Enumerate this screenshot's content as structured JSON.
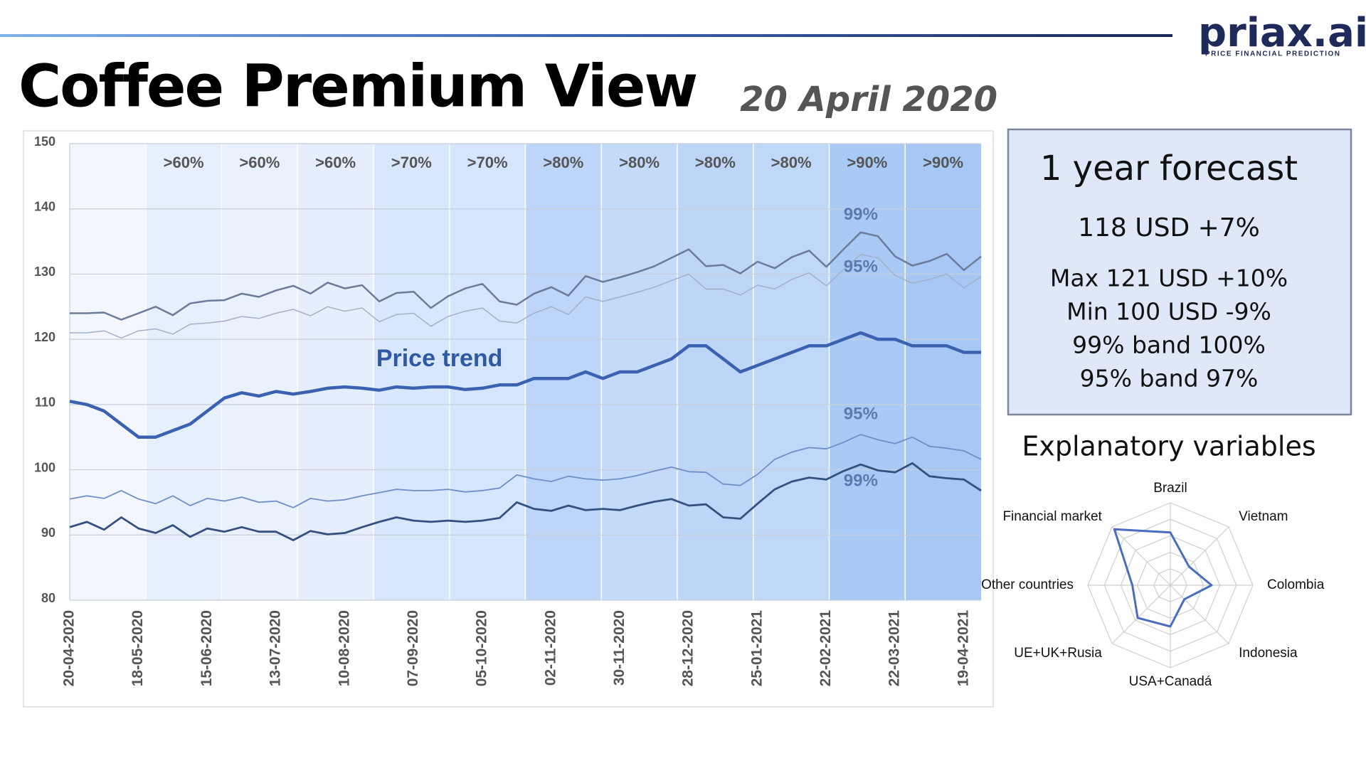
{
  "header": {
    "title": "Coffee Premium View",
    "date": "20 April 2020",
    "logo": "priax.ai",
    "logo_tagline": "PRICE FINANCIAL PREDICTION"
  },
  "forecast": {
    "title": "1 year forecast",
    "headline": "118 USD +7%",
    "lines": [
      "Max 121 USD +10%",
      "Min 100 USD -9%",
      "99% band 100%",
      "95% band 97%"
    ]
  },
  "chart_data": [
    {
      "type": "line",
      "categories": [
        "20-04-2020",
        null,
        null,
        null,
        "18-05-2020",
        null,
        null,
        null,
        "15-06-2020",
        null,
        null,
        null,
        "13-07-2020",
        null,
        null,
        null,
        "10-08-2020",
        null,
        null,
        null,
        "07-09-2020",
        null,
        null,
        null,
        "05-10-2020",
        null,
        null,
        null,
        "02-11-2020",
        null,
        null,
        null,
        "30-11-2020",
        null,
        null,
        null,
        "28-12-2020",
        null,
        null,
        null,
        "25-01-2021",
        null,
        null,
        null,
        "22-02-2021",
        null,
        null,
        null,
        "22-03-2021",
        null,
        null,
        null,
        "19-04-2021",
        null
      ],
      "ylim": [
        80,
        150
      ],
      "yticks": [
        80,
        90,
        100,
        110,
        120,
        130,
        140,
        150
      ],
      "grid": true,
      "bands": {
        "labels": [
          null,
          ">60%",
          ">60%",
          ">60%",
          ">70%",
          ">70%",
          ">80%",
          ">80%",
          ">80%",
          ">80%",
          ">90%",
          ">90%"
        ],
        "colors": [
          "#f3f7fd",
          "#e6effc",
          "#e9f1fc",
          "#e4eefc",
          "#d8e7fb",
          "#d5e5fb",
          "#bcd5f9",
          "#c3daf9",
          "#bdd6f8",
          "#c0d8f8",
          "#a9caf5",
          "#a7c8f4"
        ]
      },
      "series": [
        {
          "name": "99%",
          "color": "#6b7b99",
          "width": 2.5,
          "values": [
            124,
            124,
            124.1,
            123,
            124,
            125,
            123.7,
            125.5,
            125.9,
            126,
            127,
            126.5,
            127.5,
            128.2,
            127,
            128.7,
            127.8,
            128.3,
            125.8,
            127.1,
            127.3,
            124.8,
            126.6,
            127.8,
            128.5,
            125.8,
            125.3,
            127,
            128,
            126.7,
            129.7,
            128.8,
            129.5,
            130.3,
            131.2,
            132.5,
            133.8,
            131.2,
            131.4,
            130.1,
            131.9,
            130.9,
            132.6,
            133.6,
            131.1,
            133.8,
            136.4,
            135.8,
            132.7,
            131.3,
            132,
            133.1,
            130.6,
            132.7
          ]
        },
        {
          "name": "95%",
          "color": "#a3b0c8",
          "width": 1.5,
          "values": [
            121,
            121,
            121.3,
            120.2,
            121.3,
            121.6,
            120.8,
            122.3,
            122.5,
            122.8,
            123.5,
            123.2,
            124,
            124.6,
            123.6,
            125,
            124.3,
            124.8,
            122.7,
            123.8,
            124,
            122,
            123.5,
            124.3,
            124.8,
            122.8,
            122.5,
            124,
            125,
            123.8,
            126.5,
            125.8,
            126.5,
            127.2,
            128,
            129,
            130,
            127.7,
            127.7,
            126.8,
            128.3,
            127.7,
            129.2,
            130.2,
            128.2,
            130.7,
            133,
            132.5,
            129.8,
            128.6,
            129.2,
            130,
            127.9,
            129.6
          ]
        },
        {
          "name": "Price trend",
          "color": "#3a62b0",
          "width": 4.5,
          "values": [
            110.5,
            110,
            109,
            107,
            105,
            105,
            106,
            107,
            109,
            111,
            111.8,
            111.3,
            112,
            111.6,
            112,
            112.5,
            112.7,
            112.5,
            112.2,
            112.7,
            112.5,
            112.7,
            112.7,
            112.3,
            112.5,
            113,
            113,
            114,
            114,
            114,
            115,
            114,
            115,
            115,
            116,
            117,
            119,
            119,
            117,
            115,
            116,
            117,
            118,
            119,
            119,
            120,
            121,
            120,
            120,
            119,
            119,
            119,
            118,
            118
          ]
        },
        {
          "name": "95%",
          "color": "#6f8fc8",
          "width": 1.8,
          "values": [
            95.5,
            96,
            95.6,
            96.8,
            95.5,
            94.8,
            96,
            94.5,
            95.6,
            95.2,
            95.8,
            95,
            95.2,
            94.2,
            95.6,
            95.2,
            95.4,
            96,
            96.5,
            97,
            96.8,
            96.8,
            97,
            96.6,
            96.8,
            97.2,
            99.2,
            98.6,
            98.2,
            99,
            98.6,
            98.4,
            98.6,
            99.1,
            99.8,
            100.4,
            99.7,
            99.6,
            97.8,
            97.6,
            99.3,
            101.6,
            102.7,
            103.4,
            103.2,
            104.2,
            105.4,
            104.6,
            104,
            105,
            103.6,
            103.3,
            102.9,
            101.6
          ]
        },
        {
          "name": "99%",
          "color": "#34507f",
          "width": 2.8,
          "values": [
            91.2,
            92,
            90.8,
            92.7,
            91,
            90.3,
            91.5,
            89.7,
            91,
            90.5,
            91.2,
            90.5,
            90.5,
            89.2,
            90.6,
            90.1,
            90.3,
            91.2,
            92,
            92.7,
            92.2,
            92,
            92.2,
            92,
            92.2,
            92.6,
            95,
            94,
            93.7,
            94.5,
            93.8,
            94,
            93.8,
            94.5,
            95.1,
            95.5,
            94.5,
            94.7,
            92.7,
            92.5,
            94.8,
            97,
            98.2,
            98.8,
            98.5,
            99.8,
            100.8,
            99.9,
            99.6,
            101,
            99,
            98.7,
            98.5,
            96.8
          ]
        }
      ]
    },
    {
      "type": "radar",
      "title": "Explanatory variables",
      "categories": [
        "Brazil",
        "Vietnam",
        "Colombia",
        "Indonesia",
        "USA+Canadá",
        "UE+UK+Rusia",
        "Other countries",
        "Financial market"
      ],
      "values": [
        3.2,
        1.6,
        2.5,
        1.2,
        2.5,
        2.8,
        2.3,
        4.8
      ],
      "rlim": [
        0,
        5
      ],
      "rings": 5,
      "color": "#4a6dc0"
    }
  ]
}
